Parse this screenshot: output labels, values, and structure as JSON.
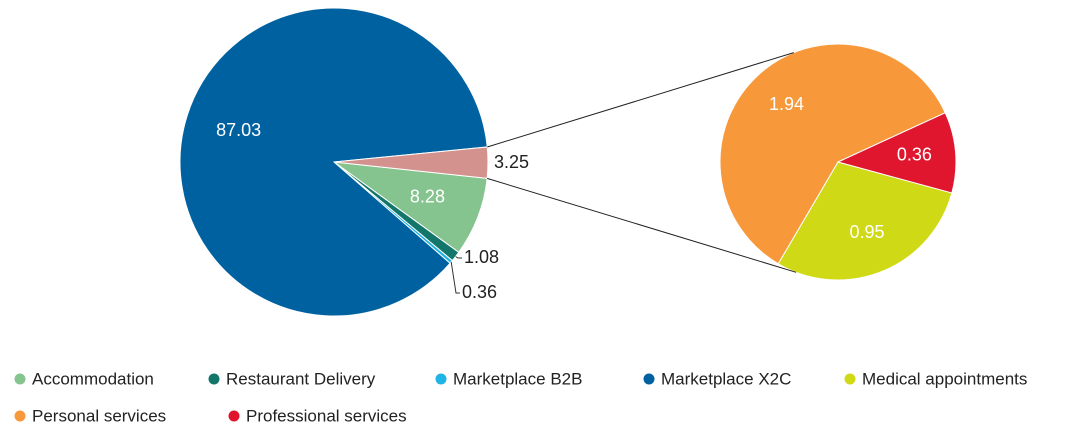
{
  "chart_data": {
    "type": "pie-of-pie",
    "categories": [
      "Accommodation",
      "Restaurant Delivery",
      "Marketplace B2B",
      "Marketplace X2C",
      null
    ],
    "values": [
      8.28,
      1.08,
      0.36,
      87.03,
      3.25
    ],
    "colors": [
      "#85c48f",
      "#12766a",
      "#1eb4e6",
      "#0061a1",
      "#d4928f"
    ],
    "secondary": {
      "categories": [
        "Medical appointments",
        "Personal services",
        "Professional services"
      ],
      "values": [
        0.95,
        1.94,
        0.36
      ],
      "colors": [
        "#d0d916",
        "#f7993a",
        "#e0162f"
      ]
    }
  }
}
